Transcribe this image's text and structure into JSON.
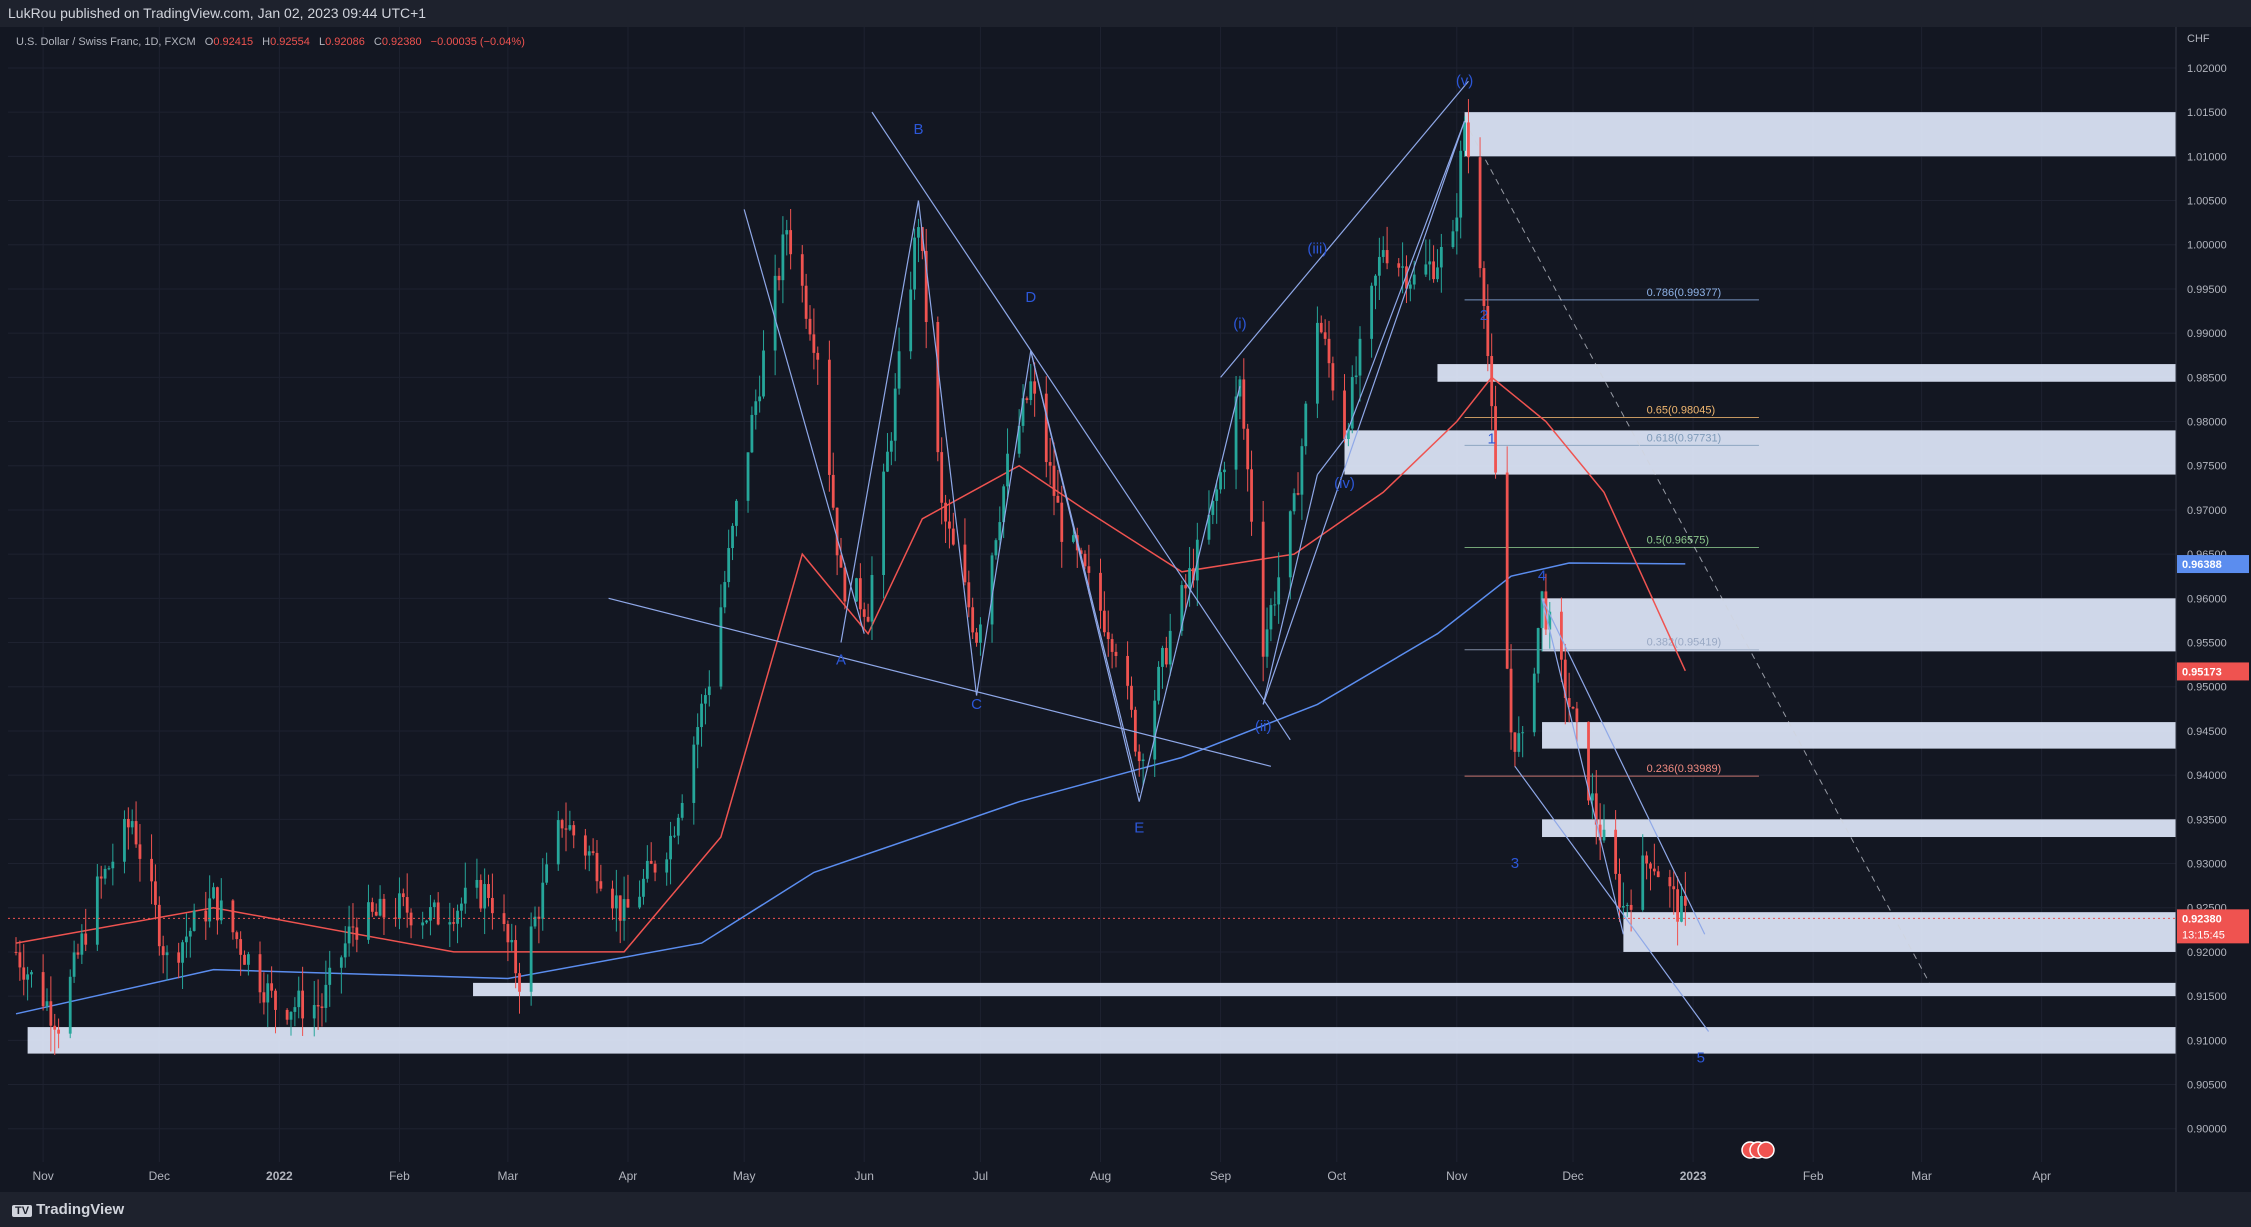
{
  "header": {
    "published_text": "LukRou published on TradingView.com, Jan 02, 2023 09:44 UTC+1"
  },
  "footer": {
    "brand": "TradingView"
  },
  "symbol": {
    "name": "U.S. Dollar / Swiss Franc, 1D, FXCM",
    "open_label": "O",
    "open": "0.92415",
    "high_label": "H",
    "high": "0.92554",
    "low_label": "L",
    "low": "0.92086",
    "close_label": "C",
    "close": "0.92380",
    "change": "−0.00035 (−0.04%)"
  },
  "colors": {
    "background": "#131722",
    "grid": "#1e2230",
    "up_candle": "#26a69a",
    "down_candle": "#ef5350",
    "ema_fast": "#ef5350",
    "ema_slow": "#5b8def",
    "trendline": "#8fa8e8",
    "zone": "#dfe8fb",
    "wave_label": "#2c57d8",
    "fib_786": "#8fb3e8",
    "fib_65": "#f2b870",
    "fib_618": "#7e9ab8",
    "fib_5": "#8dc98d",
    "fib_382": "#9aa9c4",
    "fib_236": "#f08a80"
  },
  "chart_data": {
    "type": "candlestick",
    "currency": "CHF",
    "ylim": [
      0.8985,
      1.0235
    ],
    "y_ticks": [
      "1.02000",
      "1.01500",
      "1.01000",
      "1.00500",
      "1.00000",
      "0.99500",
      "0.99000",
      "0.98500",
      "0.98000",
      "0.97500",
      "0.97000",
      "0.96500",
      "0.96000",
      "0.95500",
      "0.95000",
      "0.94500",
      "0.94000",
      "0.93500",
      "0.93000",
      "0.92500",
      "0.92000",
      "0.91500",
      "0.91000",
      "0.90500",
      "0.90000"
    ],
    "x_ticks": [
      "Nov",
      "Dec",
      "2022",
      "Feb",
      "Mar",
      "Apr",
      "May",
      "Jun",
      "Jul",
      "Aug",
      "Sep",
      "Oct",
      "Nov",
      "Dec",
      "2023",
      "Feb",
      "Mar",
      "Apr"
    ],
    "x_ticks_bold": [
      "2022",
      "2023"
    ],
    "price_path": [
      [
        "2021-10-25",
        0.92
      ],
      [
        "2021-11-05",
        0.912
      ],
      [
        "2021-11-15",
        0.927
      ],
      [
        "2021-11-24",
        0.935
      ],
      [
        "2021-12-03",
        0.919
      ],
      [
        "2021-12-15",
        0.926
      ],
      [
        "2021-12-31",
        0.914
      ],
      [
        "2022-01-12",
        0.914
      ],
      [
        "2022-01-20",
        0.923
      ],
      [
        "2022-02-01",
        0.925
      ],
      [
        "2022-02-10",
        0.924
      ],
      [
        "2022-02-24",
        0.927
      ],
      [
        "2022-03-04",
        0.917
      ],
      [
        "2022-03-15",
        0.935
      ],
      [
        "2022-03-24",
        0.93
      ],
      [
        "2022-03-31",
        0.924
      ],
      [
        "2022-04-12",
        0.933
      ],
      [
        "2022-04-22",
        0.951
      ],
      [
        "2022-04-29",
        0.97
      ],
      [
        "2022-05-12",
        1.002
      ],
      [
        "2022-05-20",
        0.988
      ],
      [
        "2022-05-26",
        0.962
      ],
      [
        "2022-06-02",
        0.959
      ],
      [
        "2022-06-15",
        1.003
      ],
      [
        "2022-06-21",
        0.97
      ],
      [
        "2022-06-30",
        0.956
      ],
      [
        "2022-07-08",
        0.975
      ],
      [
        "2022-07-14",
        0.984
      ],
      [
        "2022-07-22",
        0.968
      ],
      [
        "2022-08-05",
        0.955
      ],
      [
        "2022-08-11",
        0.942
      ],
      [
        "2022-08-19",
        0.956
      ],
      [
        "2022-08-30",
        0.97
      ],
      [
        "2022-09-06",
        0.984
      ],
      [
        "2022-09-12",
        0.955
      ],
      [
        "2022-09-20",
        0.97
      ],
      [
        "2022-09-26",
        0.992
      ],
      [
        "2022-10-03",
        0.979
      ],
      [
        "2022-10-13",
        1.0
      ],
      [
        "2022-10-21",
        0.996
      ],
      [
        "2022-10-31",
        1.0
      ],
      [
        "2022-11-03",
        1.014
      ],
      [
        "2022-11-08",
        0.995
      ],
      [
        "2022-11-10",
        0.98
      ],
      [
        "2022-11-15",
        0.945
      ],
      [
        "2022-11-18",
        0.943
      ],
      [
        "2022-11-23",
        0.96
      ],
      [
        "2022-11-30",
        0.948
      ],
      [
        "2022-12-07",
        0.935
      ],
      [
        "2022-12-14",
        0.925
      ],
      [
        "2022-12-21",
        0.931
      ],
      [
        "2022-12-28",
        0.925
      ],
      [
        "2022-12-30",
        0.9238
      ]
    ],
    "ema_fast_path": [
      [
        "2021-10-25",
        0.921
      ],
      [
        "2021-12-15",
        0.925
      ],
      [
        "2022-02-15",
        0.92
      ],
      [
        "2022-03-31",
        0.92
      ],
      [
        "2022-04-25",
        0.933
      ],
      [
        "2022-05-16",
        0.965
      ],
      [
        "2022-06-02",
        0.956
      ],
      [
        "2022-06-16",
        0.969
      ],
      [
        "2022-07-11",
        0.975
      ],
      [
        "2022-07-28",
        0.97
      ],
      [
        "2022-08-22",
        0.963
      ],
      [
        "2022-09-20",
        0.965
      ],
      [
        "2022-10-13",
        0.972
      ],
      [
        "2022-11-01",
        0.98
      ],
      [
        "2022-11-10",
        0.985
      ],
      [
        "2022-11-24",
        0.98
      ],
      [
        "2022-12-09",
        0.972
      ],
      [
        "2022-12-30",
        0.9518
      ]
    ],
    "ema_slow_path": [
      [
        "2021-10-25",
        0.913
      ],
      [
        "2021-12-15",
        0.918
      ],
      [
        "2022-03-01",
        0.917
      ],
      [
        "2022-04-20",
        0.921
      ],
      [
        "2022-05-19",
        0.929
      ],
      [
        "2022-07-11",
        0.937
      ],
      [
        "2022-08-22",
        0.942
      ],
      [
        "2022-09-26",
        0.948
      ],
      [
        "2022-10-27",
        0.956
      ],
      [
        "2022-11-15",
        0.9625
      ],
      [
        "2022-11-30",
        0.964
      ],
      [
        "2022-12-30",
        0.9639
      ]
    ],
    "ema_slow_last": "0.96388",
    "ema_fast_last": "0.95173",
    "last_price": "0.92380",
    "countdown": "13:15:45",
    "wave_labels": [
      {
        "text": "A",
        "date": "2022-05-26",
        "price": 0.9525
      },
      {
        "text": "B",
        "date": "2022-06-15",
        "price": 1.0125
      },
      {
        "text": "C",
        "date": "2022-06-30",
        "price": 0.9475
      },
      {
        "text": "D",
        "date": "2022-07-14",
        "price": 0.9935
      },
      {
        "text": "E",
        "date": "2022-08-11",
        "price": 0.9335
      },
      {
        "text": "(i)",
        "date": "2022-09-06",
        "price": 0.9905
      },
      {
        "text": "(ii)",
        "date": "2022-09-12",
        "price": 0.945
      },
      {
        "text": "(iii)",
        "date": "2022-09-26",
        "price": 0.999
      },
      {
        "text": "(iv)",
        "date": "2022-10-03",
        "price": 0.9725
      },
      {
        "text": "(v)",
        "date": "2022-11-03",
        "price": 1.018
      },
      {
        "text": "2",
        "date": "2022-11-08",
        "price": 0.9915
      },
      {
        "text": "1",
        "date": "2022-11-10",
        "price": 0.9775
      },
      {
        "text": "4",
        "date": "2022-11-23",
        "price": 0.962
      },
      {
        "text": "3",
        "date": "2022-11-16",
        "price": 0.9295
      },
      {
        "text": "5",
        "date": "2023-01-03",
        "price": 0.9075
      }
    ],
    "fib_levels": [
      {
        "label": "0.786(0.99377)",
        "price": 0.99377,
        "color": "#8fb3e8"
      },
      {
        "label": "0.65(0.98045)",
        "price": 0.98045,
        "color": "#f2b870"
      },
      {
        "label": "0.618(0.97731)",
        "price": 0.97731,
        "color": "#7e9ab8"
      },
      {
        "label": "0.5(0.96575)",
        "price": 0.96575,
        "color": "#8dc98d"
      },
      {
        "label": "0.382(0.95419)",
        "price": 0.95419,
        "color": "#9aa9c4"
      },
      {
        "label": "0.236(0.93989)",
        "price": 0.93989,
        "color": "#f08a80"
      }
    ]
  }
}
